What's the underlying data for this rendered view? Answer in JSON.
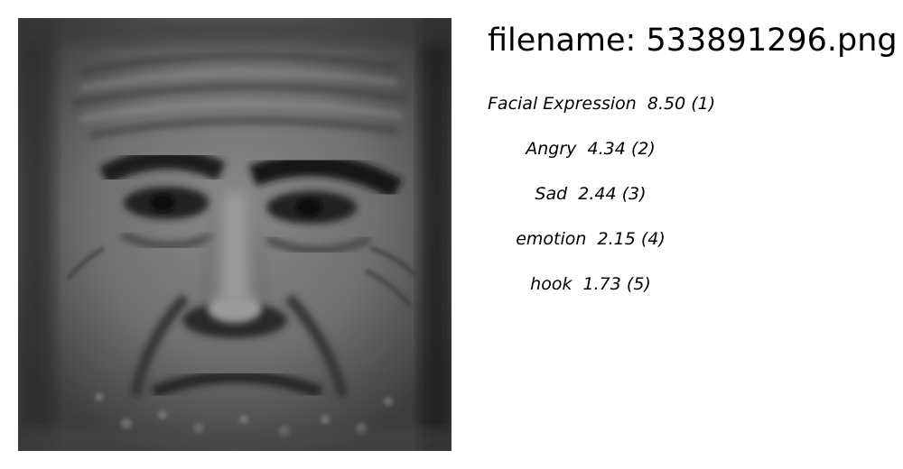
{
  "filename": "filename: 533891296.png",
  "labels": [
    {
      "label": "Facial Expression",
      "score": "8.50",
      "rank": "(1)"
    },
    {
      "label": "Angry",
      "score": "4.34",
      "rank": "(2)"
    },
    {
      "label": "Sad",
      "score": "2.44",
      "rank": "(3)"
    },
    {
      "label": "emotion",
      "score": "2.15",
      "rank": "(4)"
    },
    {
      "label": "hook",
      "score": "1.73",
      "rank": "(5)"
    }
  ],
  "colors": {
    "background": "#ffffff",
    "text": "#000000"
  },
  "image": {
    "icon": "elderly-man-face-photo"
  }
}
